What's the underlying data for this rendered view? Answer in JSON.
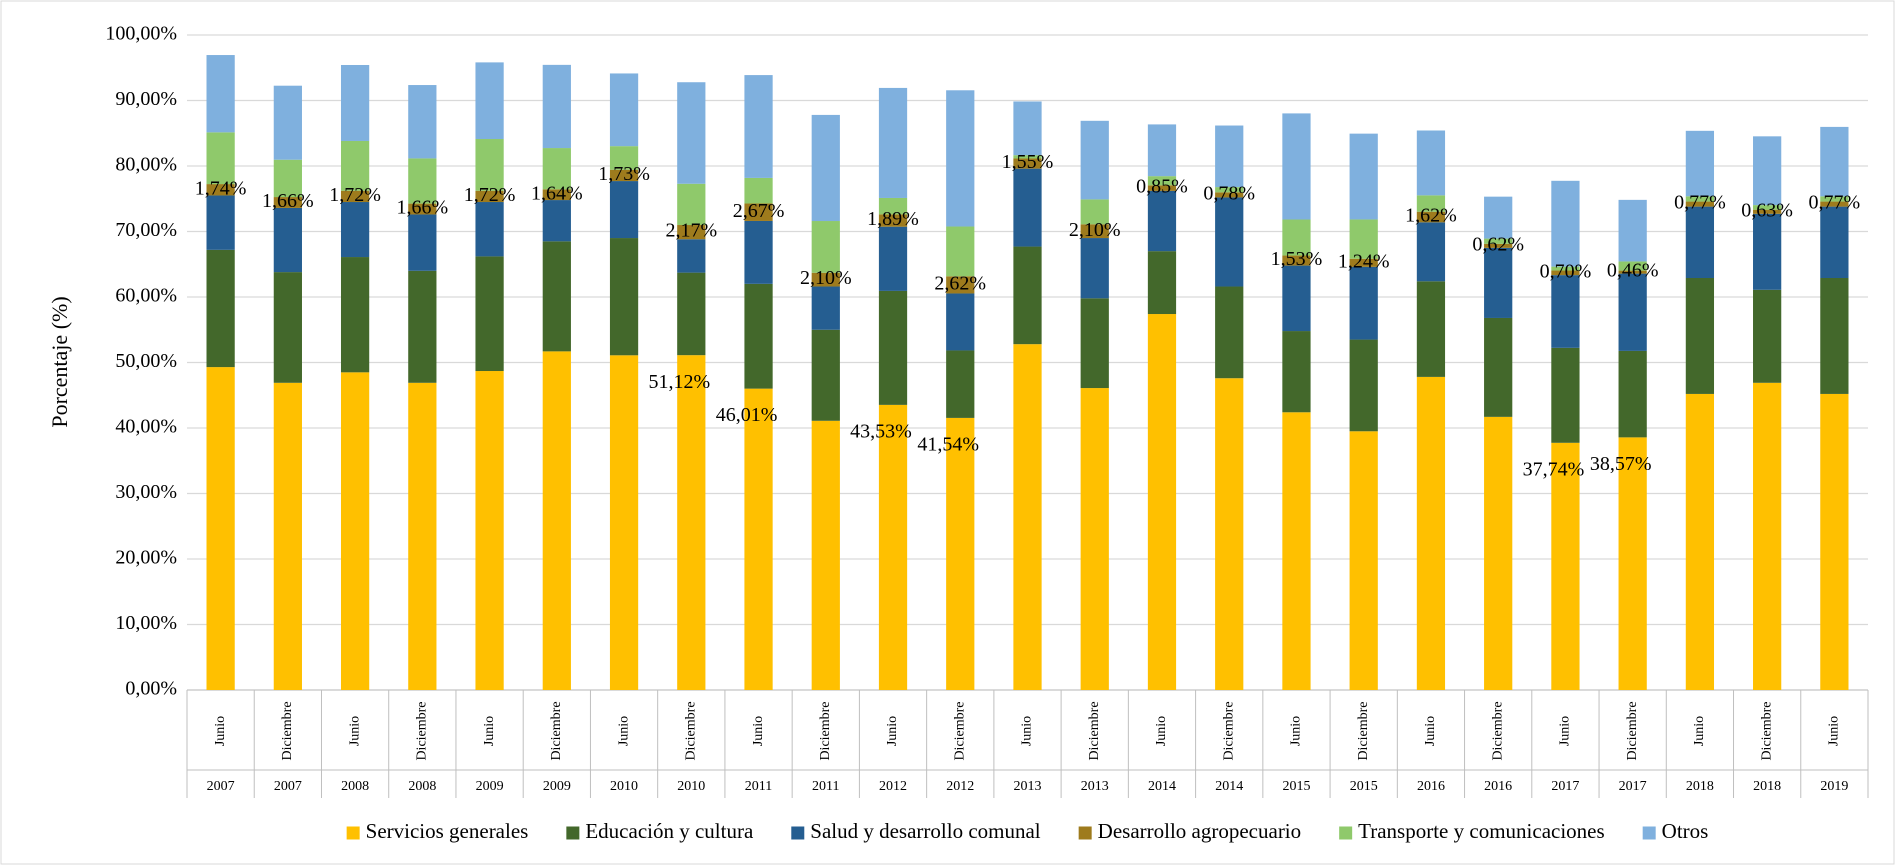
{
  "chart_data": {
    "type": "stacked_bar",
    "y_axis_label": "Porcentaje (%)",
    "categories": [
      "Junio",
      "Diciembre",
      "Junio",
      "Diciembre",
      "Junio",
      "Diciembre",
      "Junio",
      "Diciembre",
      "Junio",
      "Diciembre",
      "Junio",
      "Diciembre",
      "Junio",
      "Diciembre",
      "Junio",
      "Diciembre",
      "Junio",
      "Diciembre",
      "Junio",
      "Diciembre",
      "Junio",
      "Diciembre",
      "Junio",
      "Diciembre",
      "Junio"
    ],
    "category_years": [
      "2007",
      "2007",
      "2008",
      "2008",
      "2009",
      "2009",
      "2010",
      "2010",
      "2011",
      "2011",
      "2012",
      "2012",
      "2013",
      "2013",
      "2014",
      "2014",
      "2015",
      "2015",
      "2016",
      "2016",
      "2017",
      "2017",
      "2018",
      "2018",
      "2019"
    ],
    "ylim": [
      0,
      100
    ],
    "yticks": [
      {
        "value": 0,
        "label": "0,00%"
      },
      {
        "value": 10,
        "label": "10,00%"
      },
      {
        "value": 20,
        "label": "20,00%"
      },
      {
        "value": 30,
        "label": "30,00%"
      },
      {
        "value": 40,
        "label": "40,00%"
      },
      {
        "value": 50,
        "label": "50,00%"
      },
      {
        "value": 60,
        "label": "60,00%"
      },
      {
        "value": 70,
        "label": "70,00%"
      },
      {
        "value": 80,
        "label": "80,00%"
      },
      {
        "value": 90,
        "label": "90,00%"
      },
      {
        "value": 100,
        "label": "100,00%"
      }
    ],
    "grid": true,
    "legend": "bottom",
    "series": [
      {
        "name": "Servicios generales",
        "color": "#ffc000",
        "values": [
          49.3,
          46.9,
          48.5,
          46.9,
          48.7,
          51.7,
          51.1,
          51.12,
          46.01,
          41.1,
          43.53,
          41.54,
          52.8,
          46.1,
          57.4,
          47.6,
          42.4,
          39.5,
          47.8,
          41.7,
          37.74,
          38.57,
          45.2,
          46.9,
          45.2
        ],
        "value_labels": [
          null,
          null,
          null,
          null,
          null,
          null,
          null,
          "51,12%",
          "46,01%",
          null,
          "43,53%",
          "41,54%",
          null,
          null,
          null,
          null,
          null,
          null,
          null,
          null,
          "37,74%",
          "38,57%",
          null,
          null,
          null
        ]
      },
      {
        "name": "Educación y cultura",
        "color": "#43682b",
        "values": [
          17.9,
          16.9,
          17.6,
          17.1,
          17.5,
          16.8,
          17.9,
          12.6,
          16.0,
          13.9,
          17.4,
          10.3,
          14.9,
          13.7,
          9.6,
          14.0,
          12.4,
          14.0,
          14.6,
          15.1,
          14.5,
          13.2,
          17.7,
          14.2,
          17.7
        ]
      },
      {
        "name": "Salud y desarrollo comunal",
        "color": "#255e91",
        "values": [
          8.3,
          9.8,
          8.4,
          8.6,
          8.3,
          6.3,
          8.7,
          5.1,
          9.6,
          6.6,
          9.8,
          8.7,
          11.9,
          9.2,
          9.2,
          13.6,
          10.0,
          11.1,
          9.0,
          10.7,
          11.1,
          11.8,
          10.9,
          11.6,
          10.9
        ]
      },
      {
        "name": "Desarrollo agropecuario",
        "color": "#9e7b1d",
        "values": [
          1.74,
          1.66,
          1.72,
          1.66,
          1.72,
          1.64,
          1.73,
          2.17,
          2.67,
          2.1,
          1.89,
          2.62,
          1.55,
          2.1,
          0.85,
          0.78,
          1.53,
          1.24,
          1.62,
          0.62,
          0.7,
          0.46,
          0.77,
          0.63,
          0.77
        ],
        "value_labels": [
          "1,74%",
          "1,66%",
          "1,72%",
          "1,66%",
          "1,72%",
          "1,64%",
          "1,73%",
          "2,17%",
          "2,67%",
          "2,10%",
          "1,89%",
          "2,62%",
          "1,55%",
          "2,10%",
          "0,85%",
          "0,78%",
          "1,53%",
          "1,24%",
          "1,62%",
          "0,62%",
          "0,70%",
          "0,46%",
          "0,77%",
          "0,63%",
          "0,77%"
        ]
      },
      {
        "name": "Transporte y comunicaciones",
        "color": "#8fc96b",
        "values": [
          7.9,
          5.7,
          7.6,
          6.9,
          7.9,
          6.3,
          3.6,
          6.3,
          3.9,
          7.9,
          2.5,
          7.6,
          0.5,
          3.8,
          1.4,
          0.8,
          5.5,
          6.0,
          2.5,
          0.8,
          0.6,
          1.4,
          0.8,
          0.7,
          0.8
        ]
      },
      {
        "name": "Otros",
        "color": "#7fb0de",
        "values": [
          11.8,
          11.3,
          11.6,
          11.2,
          11.7,
          12.7,
          11.1,
          15.5,
          15.7,
          16.2,
          16.8,
          20.8,
          8.2,
          12.0,
          7.9,
          9.4,
          16.2,
          13.1,
          9.9,
          6.4,
          13.1,
          9.4,
          10.0,
          10.5,
          10.6
        ]
      }
    ]
  }
}
